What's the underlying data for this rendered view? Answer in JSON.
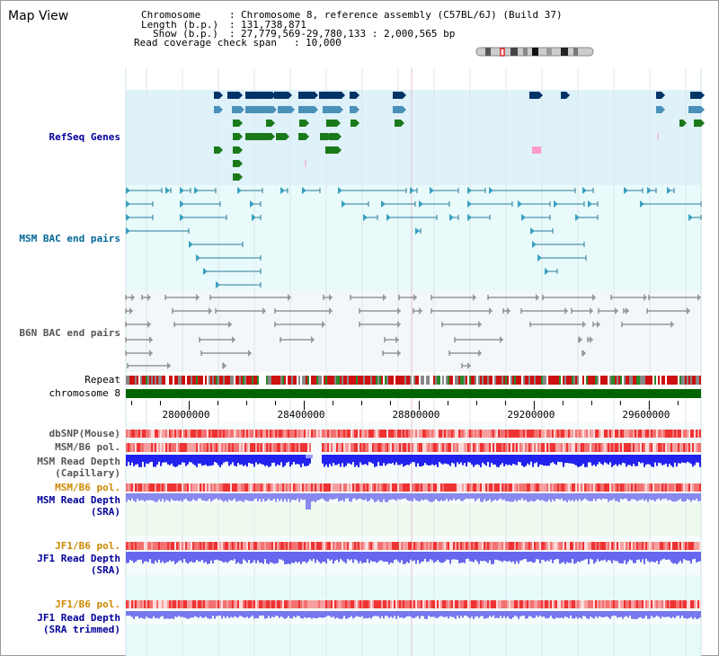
{
  "view": {
    "title": "Map View"
  },
  "info": {
    "chromosome_key": "Chromosome",
    "chromosome_val": "Chromosome 8, reference assembly (C57BL/6J) (Build 37)",
    "length_key": "Length (b.p.)",
    "length_val": "131,738,871",
    "show_key": "Show (b.p.)",
    "show_val": "27,779,569-29,780,133 : 2,000,565 bp",
    "coverage_key": "Read coverage check span",
    "coverage_val": "10,000",
    "sep": ":"
  },
  "tracks": {
    "refseq": "RefSeq Genes",
    "msm_bac": "MSM BAC end pairs",
    "b6n_bac": "B6N BAC end pairs",
    "repeat": "Repeat",
    "chromosome": "chromosome 8",
    "dbsnp": "dbSNP(Mouse)",
    "msm_pol": "MSM/B6 pol.",
    "msm_depth_cap_1": "MSM Read Depth",
    "msm_depth_cap_2": "(Capillary)",
    "msm_pol2": "MSM/B6 pol.",
    "msm_depth_sra_1": "MSM Read Depth",
    "msm_depth_sra_2": "(SRA)",
    "jf1_pol": "JF1/B6 pol.",
    "jf1_depth_sra_1": "JF1 Read Depth",
    "jf1_depth_sra_2": "(SRA)",
    "jf1_pol2": "JF1/B6 pol.",
    "jf1_depth_trim_1": "JF1 Read Depth",
    "jf1_depth_trim_2": "(SRA trimmed)"
  },
  "ruler": {
    "range": [
      27779569,
      29780133
    ],
    "labels": [
      "28000000",
      "28400000",
      "28800000",
      "29200000",
      "29600000"
    ],
    "positions": [
      28000000,
      28400000,
      28800000,
      29200000,
      29600000
    ]
  },
  "colors": {
    "refseq_bg": "#dff2fa",
    "msm_bac_bg": "#e8fafa",
    "b6n_bac_bg": "#f4f7f9",
    "chromosome": "#006400",
    "gene_navy": "#003366",
    "gene_steel": "#4a90b8",
    "gene_green": "#1a7a1a",
    "bac_line": "#2a7a9a",
    "b6n_line": "#666666",
    "label_navy": "#000099",
    "label_teal": "#006699",
    "label_gray": "#555555",
    "label_orange": "#cc8800",
    "depth_blue": "#1a1aee",
    "pol_red": "#ee2222"
  },
  "icons": {
    "ideogram": "chromosome-ideogram-icon"
  }
}
